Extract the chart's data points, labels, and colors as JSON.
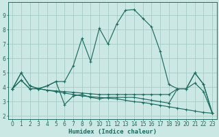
{
  "xlabel": "Humidex (Indice chaleur)",
  "bg_color": "#cce8e4",
  "grid_color": "#aad0cc",
  "line_color": "#1a6b60",
  "xlim": [
    -0.5,
    23.5
  ],
  "ylim": [
    1.8,
    9.9
  ],
  "xticks": [
    0,
    1,
    2,
    3,
    4,
    5,
    6,
    7,
    8,
    9,
    10,
    11,
    12,
    13,
    14,
    15,
    16,
    17,
    18,
    19,
    20,
    21,
    22,
    23
  ],
  "yticks": [
    2,
    3,
    4,
    5,
    6,
    7,
    8,
    9
  ],
  "series_peak_x": [
    0,
    1,
    2,
    3,
    4,
    5,
    6,
    7,
    8,
    9,
    10,
    11,
    12,
    13,
    14,
    15,
    16,
    17,
    18,
    19,
    20,
    21,
    22,
    23
  ],
  "series_peak_y": [
    3.9,
    5.0,
    4.1,
    3.9,
    4.1,
    4.4,
    4.4,
    5.5,
    7.4,
    5.8,
    8.1,
    7.0,
    8.4,
    9.35,
    9.4,
    8.8,
    8.2,
    6.5,
    4.2,
    3.9,
    3.9,
    5.0,
    4.2,
    2.2
  ],
  "series_diag_x": [
    0,
    1,
    2,
    3,
    4,
    5,
    6,
    7,
    8,
    9,
    10,
    11,
    12,
    13,
    14,
    15,
    16,
    17,
    18,
    19,
    20,
    21,
    22,
    23
  ],
  "series_diag_y": [
    3.9,
    4.5,
    3.9,
    3.9,
    3.8,
    3.7,
    3.6,
    3.5,
    3.4,
    3.35,
    3.3,
    3.25,
    3.2,
    3.1,
    3.0,
    2.95,
    2.85,
    2.75,
    2.65,
    2.55,
    2.45,
    2.35,
    2.25,
    2.2
  ],
  "series_flat_x": [
    0,
    1,
    2,
    3,
    4,
    5,
    6,
    7,
    8,
    9,
    10,
    11,
    12,
    13,
    14,
    15,
    16,
    17,
    18,
    19,
    20,
    21,
    22,
    23
  ],
  "series_flat_y": [
    3.9,
    4.5,
    3.9,
    3.9,
    3.8,
    3.75,
    3.7,
    3.65,
    3.6,
    3.55,
    3.5,
    3.5,
    3.5,
    3.5,
    3.5,
    3.5,
    3.5,
    3.5,
    3.5,
    3.9,
    3.9,
    4.3,
    3.7,
    2.2
  ],
  "series_wiggle_x": [
    0,
    1,
    2,
    3,
    4,
    5,
    6,
    7,
    8,
    9,
    10,
    11,
    12,
    13,
    14,
    15,
    16,
    17,
    18,
    19,
    20,
    21,
    22,
    23
  ],
  "series_wiggle_y": [
    3.9,
    5.0,
    4.1,
    3.9,
    4.1,
    4.4,
    2.8,
    3.4,
    3.5,
    3.3,
    3.2,
    3.3,
    3.3,
    3.3,
    3.3,
    3.2,
    3.1,
    3.0,
    2.9,
    3.9,
    3.9,
    5.0,
    4.2,
    2.2
  ]
}
